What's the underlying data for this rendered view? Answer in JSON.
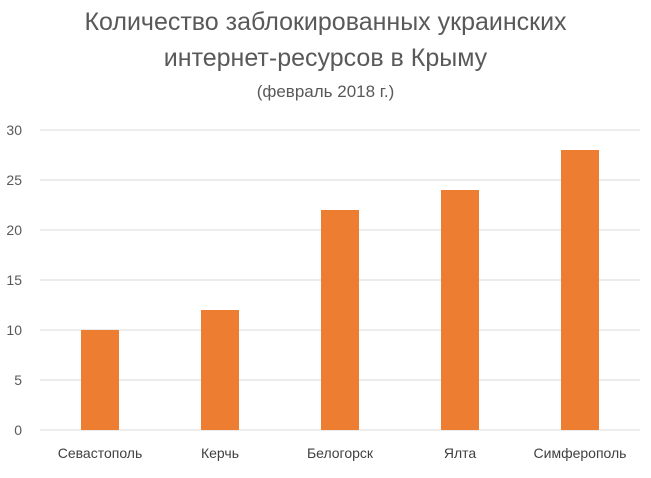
{
  "chart_data": {
    "type": "bar",
    "title_line1": "Количество заблокированных украинских",
    "title_line2": "интернет-ресурсов в Крыму",
    "subtitle": "(февраль 2018 г.)",
    "categories": [
      "Севастополь",
      "Керчь",
      "Белогорск",
      "Ялта",
      "Симферополь"
    ],
    "values": [
      10,
      12,
      22,
      24,
      28
    ],
    "ylim": [
      0,
      30
    ],
    "yticks": [
      "0",
      "5",
      "10",
      "15",
      "20",
      "25",
      "30"
    ],
    "grid": true,
    "legend": "none",
    "bar_color": "#ED7D31",
    "grid_color": "#D9D9D9"
  }
}
